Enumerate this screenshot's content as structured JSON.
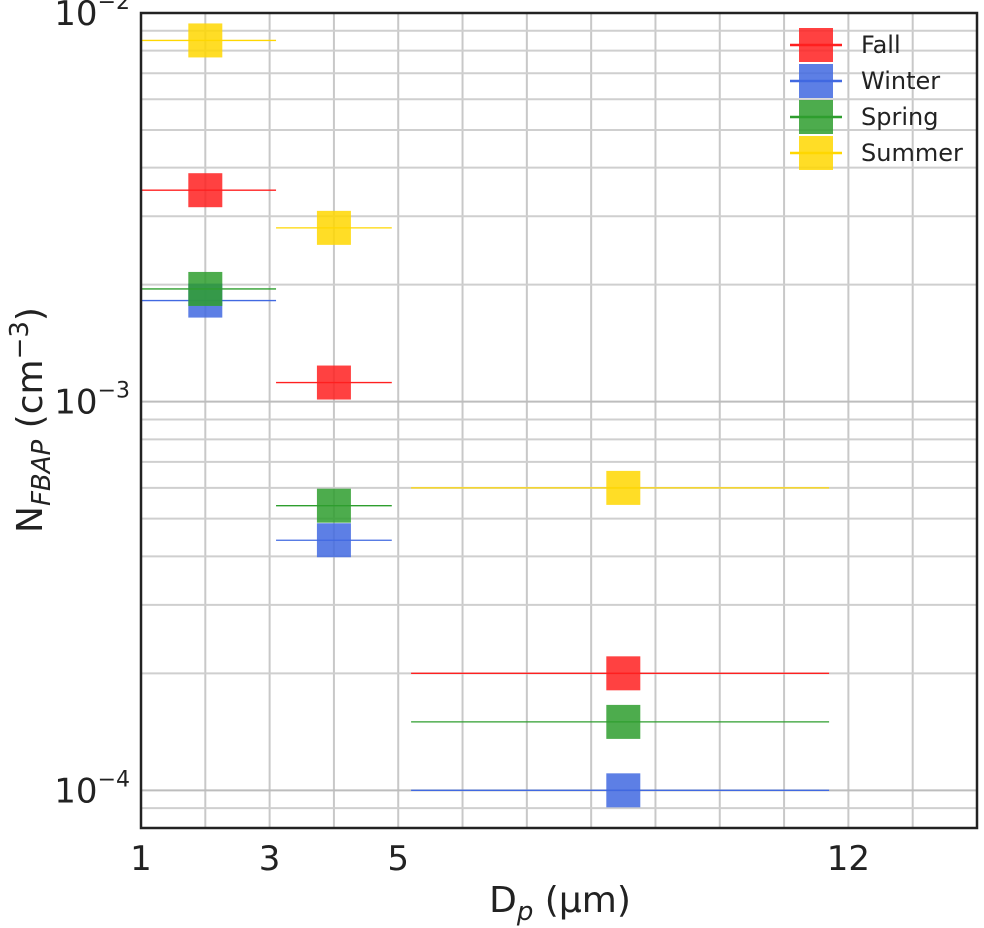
{
  "chart_data": {
    "type": "scatter",
    "xscale": "linear",
    "yscale": "log",
    "xlim": [
      1,
      14
    ],
    "ylim": [
      8e-05,
      0.01
    ],
    "xticks": [
      1,
      3,
      5,
      12
    ],
    "xtick_labels": [
      "1",
      "3",
      "5",
      "12"
    ],
    "ytick_labels": [
      {
        "base": "10",
        "exp": "−2"
      },
      {
        "base": "10",
        "exp": "−3"
      },
      {
        "base": "10",
        "exp": "−4"
      }
    ],
    "xlabel": {
      "main": "D",
      "sub": "p",
      "rest": " (μm)"
    },
    "ylabel": {
      "main": "N",
      "sub": "FBAP",
      "rest": " (cm",
      "sup": "−3",
      "end": ")"
    },
    "grid": true,
    "legend_position": "top-right",
    "series": [
      {
        "name": "Fall",
        "color": "#ff2020",
        "points": [
          {
            "x": 2,
            "y": 0.0035,
            "xerr": [
              1,
              3.1
            ]
          },
          {
            "x": 4,
            "y": 0.00112,
            "xerr": [
              3.1,
              4.9
            ]
          },
          {
            "x": 8.5,
            "y": 0.0002,
            "xerr": [
              5.2,
              11.7
            ]
          }
        ]
      },
      {
        "name": "Winter",
        "color": "#4169e1",
        "points": [
          {
            "x": 2,
            "y": 0.00182,
            "xerr": [
              1,
              3.1
            ]
          },
          {
            "x": 4,
            "y": 0.00044,
            "xerr": [
              3.1,
              4.9
            ]
          },
          {
            "x": 8.5,
            "y": 0.0001,
            "xerr": [
              5.2,
              11.7
            ]
          }
        ]
      },
      {
        "name": "Spring",
        "color": "#2e9e2e",
        "points": [
          {
            "x": 2,
            "y": 0.00195,
            "xerr": [
              1,
              3.1
            ]
          },
          {
            "x": 4,
            "y": 0.00054,
            "xerr": [
              3.1,
              4.9
            ]
          },
          {
            "x": 8.5,
            "y": 0.00015,
            "xerr": [
              5.2,
              11.7
            ]
          }
        ]
      },
      {
        "name": "Summer",
        "color": "#ffd700",
        "points": [
          {
            "x": 2,
            "y": 0.0085,
            "xerr": [
              1,
              3.1
            ]
          },
          {
            "x": 4,
            "y": 0.0028,
            "xerr": [
              3.1,
              4.9
            ]
          },
          {
            "x": 8.5,
            "y": 0.0006,
            "xerr": [
              5.2,
              11.7
            ]
          }
        ]
      }
    ]
  }
}
